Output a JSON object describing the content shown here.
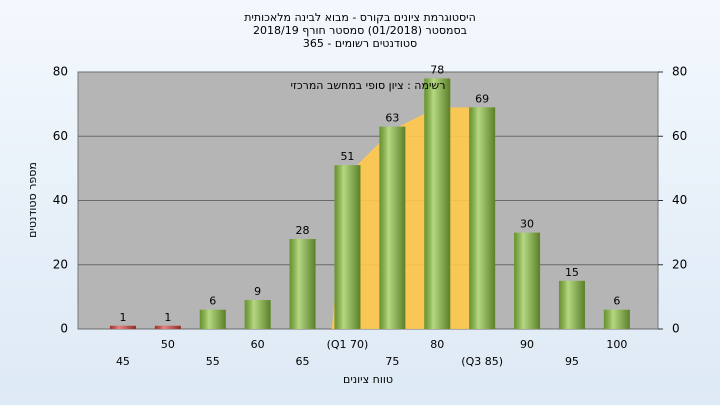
{
  "chart_data": {
    "type": "bar",
    "title": [
      "היסטוגרמת ציונים בקורס - מבוא לבינה מלאכותית",
      "בסמסטר (01/2018) סמסטר חורף 2018/19",
      "סטודנטים רשומים - 365"
    ],
    "legend_text": "רשימה : ציון סופי במחשב המרכזי",
    "x_label": "טווח ציונים",
    "y_label": "מספר סטודנטים",
    "categories": [
      "45",
      "50",
      "55",
      "60",
      "65",
      "(Q1 70)",
      "75",
      "80",
      "(Q3 85)",
      "90",
      "95",
      "100"
    ],
    "values": [
      1,
      1,
      6,
      9,
      28,
      51,
      63,
      78,
      69,
      30,
      15,
      6
    ],
    "colors": [
      "#d9433d",
      "#d9433d",
      "#8cc43f",
      "#8cc43f",
      "#8cc43f",
      "#8cc43f",
      "#8cc43f",
      "#8cc43f",
      "#8cc43f",
      "#8cc43f",
      "#8cc43f",
      "#8cc43f"
    ],
    "curve": {
      "color": "#ffc94a",
      "values": [
        null,
        null,
        null,
        null,
        null,
        48,
        62,
        69,
        69,
        null,
        null,
        null
      ]
    },
    "ylim": [
      0,
      80
    ],
    "yticks": [
      0,
      20,
      40,
      60,
      80
    ],
    "y2lim": [
      0,
      80
    ],
    "y2ticks": [
      0,
      20,
      40,
      60,
      80
    ],
    "grid": true
  }
}
